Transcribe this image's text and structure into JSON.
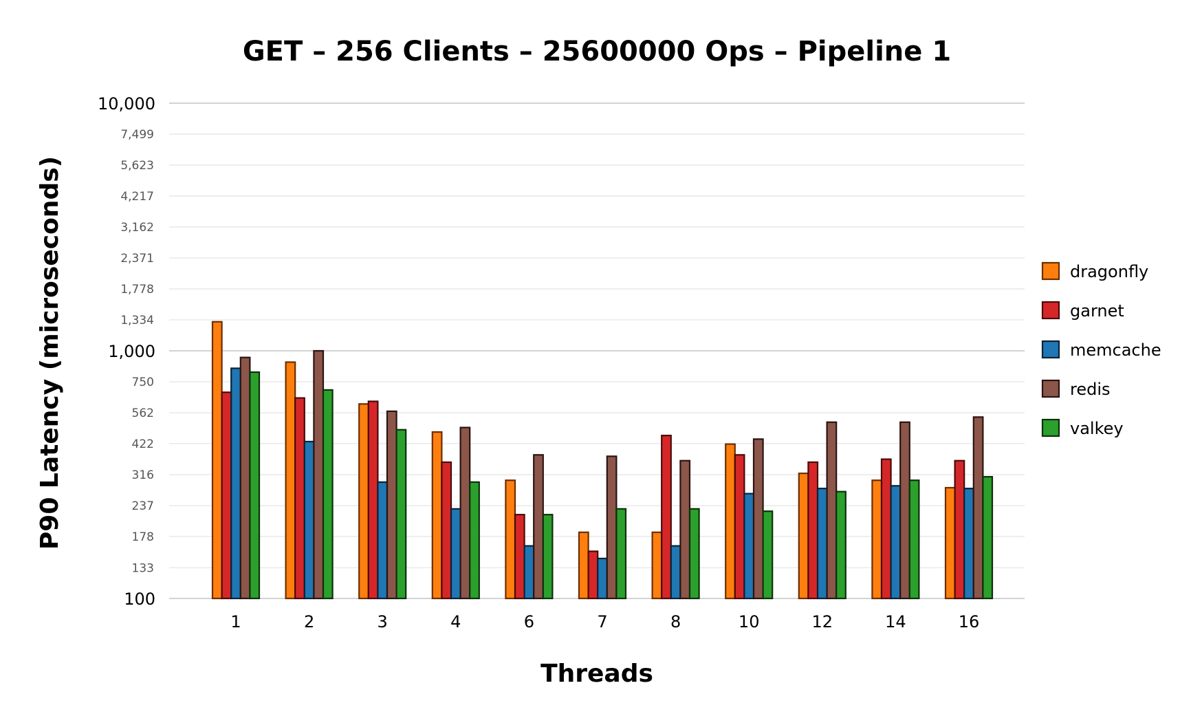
{
  "chart_data": {
    "type": "bar",
    "title": "GET – 256 Clients – 25600000 Ops – Pipeline 1",
    "xlabel": "Threads",
    "ylabel": "P90 Latency (microseconds)",
    "y_scale": "log",
    "ylim": [
      100,
      10000
    ],
    "y_ticks_major": [
      "100",
      "1,000",
      "10,000"
    ],
    "y_ticks_minor": [
      "133",
      "178",
      "237",
      "316",
      "422",
      "562",
      "750",
      "1,334",
      "1,778",
      "2,371",
      "3,162",
      "4,217",
      "5,623",
      "7,499"
    ],
    "grid": true,
    "legend_position": "right",
    "categories": [
      "1",
      "2",
      "3",
      "4",
      "6",
      "7",
      "8",
      "10",
      "12",
      "14",
      "16"
    ],
    "series": [
      {
        "name": "dragonfly",
        "color": "#ff7f0e",
        "edge": "#6b2e00",
        "values": [
          1310,
          900,
          610,
          470,
          300,
          185,
          185,
          420,
          320,
          300,
          280
        ]
      },
      {
        "name": "garnet",
        "color": "#d62728",
        "edge": "#4a0a0a",
        "values": [
          680,
          645,
          625,
          355,
          218,
          155,
          455,
          380,
          355,
          365,
          360
        ]
      },
      {
        "name": "memcache",
        "color": "#1f77b4",
        "edge": "#0b2236",
        "values": [
          850,
          430,
          295,
          230,
          163,
          145,
          163,
          265,
          278,
          285,
          278
        ]
      },
      {
        "name": "redis",
        "color": "#8c564b",
        "edge": "#2a1410",
        "values": [
          940,
          1000,
          570,
          490,
          380,
          375,
          360,
          440,
          515,
          515,
          540
        ]
      },
      {
        "name": "valkey",
        "color": "#2ca02c",
        "edge": "#0c300c",
        "values": [
          820,
          695,
          480,
          295,
          218,
          230,
          230,
          225,
          270,
          300,
          310
        ]
      }
    ]
  }
}
